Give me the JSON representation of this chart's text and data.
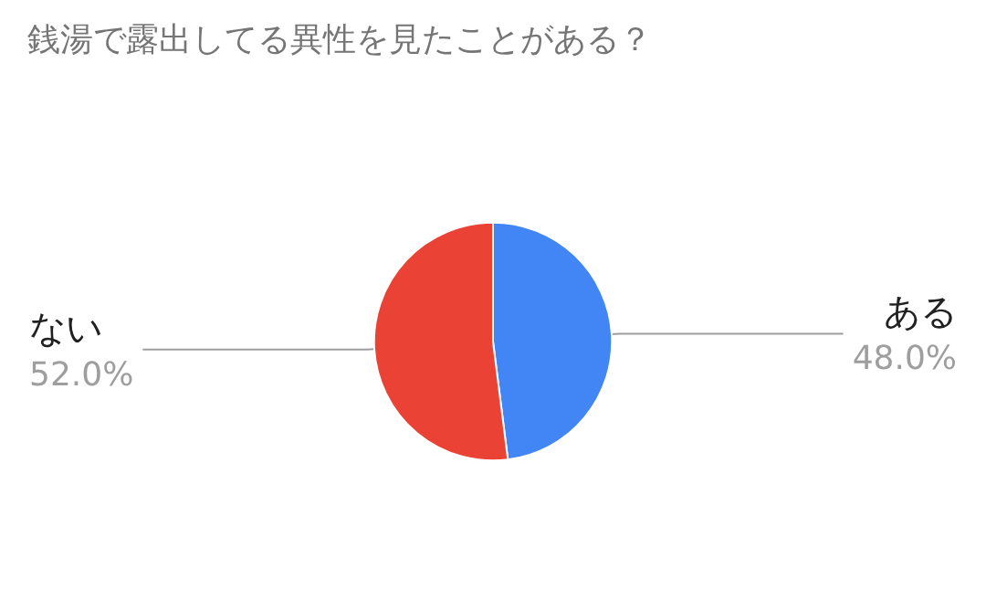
{
  "chart_data": {
    "type": "pie",
    "title": "銭湯で露出してる異性を見たことがある？",
    "categories": [
      "ある",
      "ない"
    ],
    "values": [
      48.0,
      52.0
    ],
    "colors": [
      "#4285f4",
      "#ea4335"
    ],
    "value_labels": [
      "48.0%",
      "52.0%"
    ]
  }
}
